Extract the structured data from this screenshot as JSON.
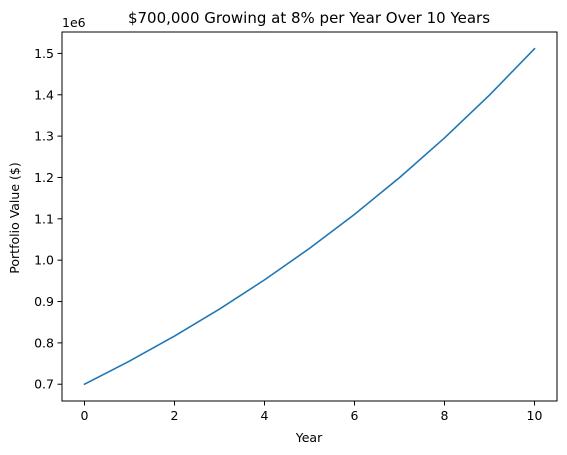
{
  "chart_data": {
    "type": "line",
    "title": "$700,000 Growing at 8% per Year Over 10 Years",
    "xlabel": "Year",
    "ylabel": "Portfolio Value ($)",
    "y_offset_label": "1e6",
    "x": [
      0,
      1,
      2,
      3,
      4,
      5,
      6,
      7,
      8,
      9,
      10
    ],
    "series": [
      {
        "values": [
          700000,
          756000,
          816480,
          881798,
          952342,
          1028529,
          1110811,
          1199676,
          1295650,
          1399302,
          1511247
        ],
        "color": "#1f77b4"
      }
    ],
    "xlim": [
      -0.5,
      10.5
    ],
    "ylim": [
      659438,
      1551809
    ],
    "x_ticks": [
      0,
      2,
      4,
      6,
      8,
      10
    ],
    "x_tick_labels": [
      "0",
      "2",
      "4",
      "6",
      "8",
      "10"
    ],
    "y_ticks": [
      700000,
      800000,
      900000,
      1000000,
      1100000,
      1200000,
      1300000,
      1400000,
      1500000
    ],
    "y_tick_labels": [
      "0.7",
      "0.8",
      "0.9",
      "1.0",
      "1.1",
      "1.2",
      "1.3",
      "1.4",
      "1.5"
    ],
    "grid": false,
    "legend": "none"
  }
}
